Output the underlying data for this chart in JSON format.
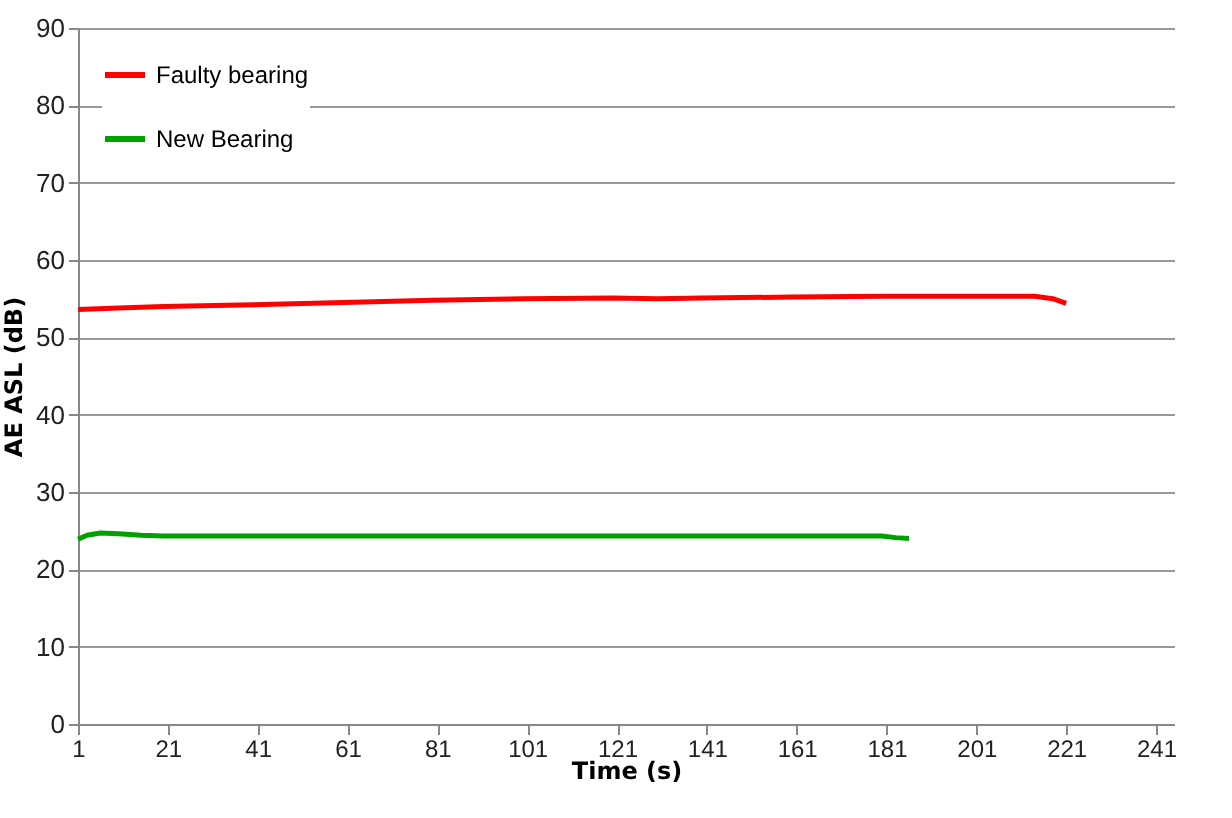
{
  "chart_data": {
    "type": "line",
    "xlabel": "Time (s)",
    "ylabel": "AE ASL (dB)",
    "xlim": [
      1,
      245
    ],
    "xticks": [
      1,
      21,
      41,
      61,
      81,
      101,
      121,
      141,
      161,
      181,
      201,
      221,
      241
    ],
    "ylim": [
      0,
      90
    ],
    "yticks": [
      0,
      10,
      20,
      30,
      40,
      50,
      60,
      70,
      80,
      90
    ],
    "grid": "y",
    "legend": "top left",
    "marker": "none",
    "line_style": "solid",
    "series": [
      {
        "name": "Faulty bearing",
        "color": "#ff0000",
        "x": [
          1,
          10,
          20,
          40,
          60,
          80,
          100,
          120,
          130,
          140,
          160,
          180,
          200,
          214,
          218,
          221
        ],
        "values": [
          53.6,
          53.8,
          54.0,
          54.2,
          54.5,
          54.8,
          55.0,
          55.1,
          55.0,
          55.1,
          55.2,
          55.3,
          55.3,
          55.3,
          55.0,
          54.4
        ]
      },
      {
        "name": "New Bearing",
        "color": "#00a000",
        "x": [
          1,
          3,
          6,
          10,
          15,
          20,
          40,
          100,
          170,
          180,
          183,
          186
        ],
        "values": [
          23.9,
          24.4,
          24.7,
          24.6,
          24.4,
          24.3,
          24.3,
          24.3,
          24.3,
          24.3,
          24.1,
          24.0
        ]
      }
    ]
  }
}
